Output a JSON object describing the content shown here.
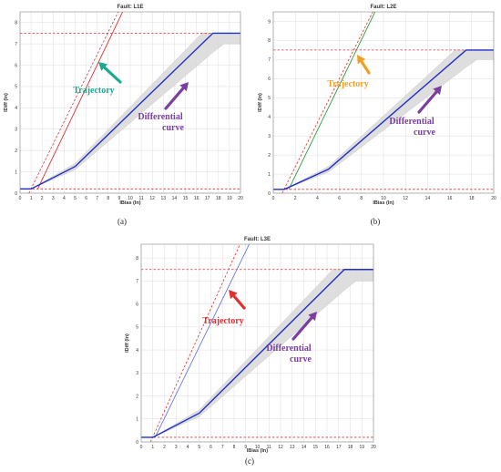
{
  "chart_data": [
    {
      "type": "line",
      "title": "Fault: L1E",
      "caption": "(a)",
      "xlabel": "IBias (In)",
      "ylabel": "IDiff (In)",
      "xlim": [
        0,
        20
      ],
      "ylim": [
        0,
        8.5
      ],
      "xticks": [
        "0",
        "1",
        "2",
        "3",
        "4",
        "5",
        "6",
        "7",
        "8",
        "9",
        "10",
        "11",
        "12",
        "13",
        "14",
        "15",
        "16",
        "17",
        "18",
        "19",
        "20"
      ],
      "yticks": [
        "0",
        "1",
        "2",
        "3",
        "4",
        "5",
        "6",
        "7",
        "8"
      ],
      "grid": true,
      "differential_curve": {
        "x": [
          0,
          1,
          5,
          17.5,
          20
        ],
        "y": [
          0.2,
          0.2,
          1.25,
          7.5,
          7.5
        ],
        "color": "#1f2fc8"
      },
      "differential_band_upper": {
        "x": [
          0,
          1,
          5,
          16.5,
          20
        ],
        "y": [
          0.2,
          0.2,
          1.4,
          7.5,
          7.5
        ]
      },
      "differential_band_lower": {
        "x": [
          0,
          1,
          5,
          17.5,
          18.5,
          20
        ],
        "y": [
          0.2,
          0.2,
          1.1,
          6.6,
          7.0,
          7.0
        ]
      },
      "trajectory": {
        "x": [
          1.6,
          9.4
        ],
        "y": [
          0.2,
          8.6
        ],
        "color": "#e03030"
      },
      "dashed_limit": {
        "x": [
          0.8,
          9.0
        ],
        "y": [
          0.0,
          8.6
        ],
        "color": "#e03030"
      },
      "hline_upper": {
        "y": 7.5,
        "color": "#e03030"
      },
      "hline_lower": {
        "y": 0.2,
        "color": "#e03030"
      },
      "annotations": [
        {
          "text": "Trajectory",
          "color": "#1fa890"
        },
        {
          "text": "Differential",
          "color": "#7a3fa0"
        },
        {
          "text": "curve",
          "color": "#7a3fa0"
        }
      ]
    },
    {
      "type": "line",
      "title": "Fault: L2E",
      "caption": "(b)",
      "xlabel": "IBias (In)",
      "ylabel": "IDiff (In)",
      "xlim": [
        0,
        20
      ],
      "ylim": [
        0,
        9.5
      ],
      "xticks": [
        "0",
        "2",
        "4",
        "6",
        "8",
        "10",
        "12",
        "14",
        "16",
        "18",
        "20"
      ],
      "yticks": [
        "0",
        "1",
        "2",
        "3",
        "4",
        "5",
        "6",
        "7",
        "8",
        "9"
      ],
      "grid": true,
      "differential_curve": {
        "x": [
          0,
          1,
          5,
          17.5,
          20
        ],
        "y": [
          0.2,
          0.2,
          1.25,
          7.5,
          7.5
        ],
        "color": "#1f2fc8"
      },
      "differential_band_upper": {
        "x": [
          0,
          1,
          5,
          16.5,
          20
        ],
        "y": [
          0.2,
          0.2,
          1.4,
          7.5,
          7.5
        ]
      },
      "differential_band_lower": {
        "x": [
          0,
          1,
          5,
          17.5,
          18.5,
          20
        ],
        "y": [
          0.2,
          0.2,
          1.1,
          6.6,
          7.0,
          7.0
        ]
      },
      "trajectory": {
        "x": [
          1.4,
          9.4
        ],
        "y": [
          0.2,
          9.7
        ],
        "color": "#2aa040"
      },
      "dashed_limit": {
        "x": [
          0.8,
          9.2
        ],
        "y": [
          0.0,
          9.7
        ],
        "color": "#e03030"
      },
      "hline_upper": {
        "y": 7.5,
        "color": "#e03030"
      },
      "hline_lower": {
        "y": 0.2,
        "color": "#e03030"
      },
      "annotations": [
        {
          "text": "Trajectory",
          "color": "#f0a020"
        },
        {
          "text": "Differential",
          "color": "#7a3fa0"
        },
        {
          "text": "curve",
          "color": "#7a3fa0"
        }
      ]
    },
    {
      "type": "line",
      "title": "Fault: L3E",
      "caption": "(c)",
      "xlabel": "IBias (In)",
      "ylabel": "IDiff (In)",
      "xlim": [
        0,
        20
      ],
      "ylim": [
        0,
        8.6
      ],
      "xticks": [
        "0",
        "1",
        "2",
        "3",
        "4",
        "5",
        "6",
        "7",
        "8",
        "9",
        "10",
        "11",
        "12",
        "13",
        "14",
        "15",
        "16",
        "17",
        "18",
        "19",
        "20"
      ],
      "yticks": [
        "0",
        "1",
        "2",
        "3",
        "4",
        "5",
        "6",
        "7",
        "8"
      ],
      "grid": true,
      "differential_curve": {
        "x": [
          0,
          1,
          5,
          17.5,
          20
        ],
        "y": [
          0.2,
          0.2,
          1.25,
          7.5,
          7.5
        ],
        "color": "#1f2fc8"
      },
      "differential_band_upper": {
        "x": [
          0,
          1,
          5,
          16.5,
          20
        ],
        "y": [
          0.2,
          0.2,
          1.4,
          7.5,
          7.5
        ]
      },
      "differential_band_lower": {
        "x": [
          0,
          1,
          5,
          17.5,
          18.5,
          20
        ],
        "y": [
          0.2,
          0.2,
          1.1,
          6.6,
          7.0,
          7.0
        ]
      },
      "trajectory": {
        "x": [
          1.2,
          9.4
        ],
        "y": [
          0.2,
          8.7
        ],
        "color": "#6a7ad8"
      },
      "dashed_limit": {
        "x": [
          0.8,
          8.6
        ],
        "y": [
          0.0,
          8.7
        ],
        "color": "#e03030"
      },
      "hline_upper": {
        "y": 7.5,
        "color": "#e03030"
      },
      "hline_lower": {
        "y": 0.2,
        "color": "#e03030"
      },
      "annotations": [
        {
          "text": "Trajectory",
          "color": "#e03030"
        },
        {
          "text": "Differential",
          "color": "#7a3fa0"
        },
        {
          "text": "curve",
          "color": "#7a3fa0"
        }
      ]
    }
  ]
}
